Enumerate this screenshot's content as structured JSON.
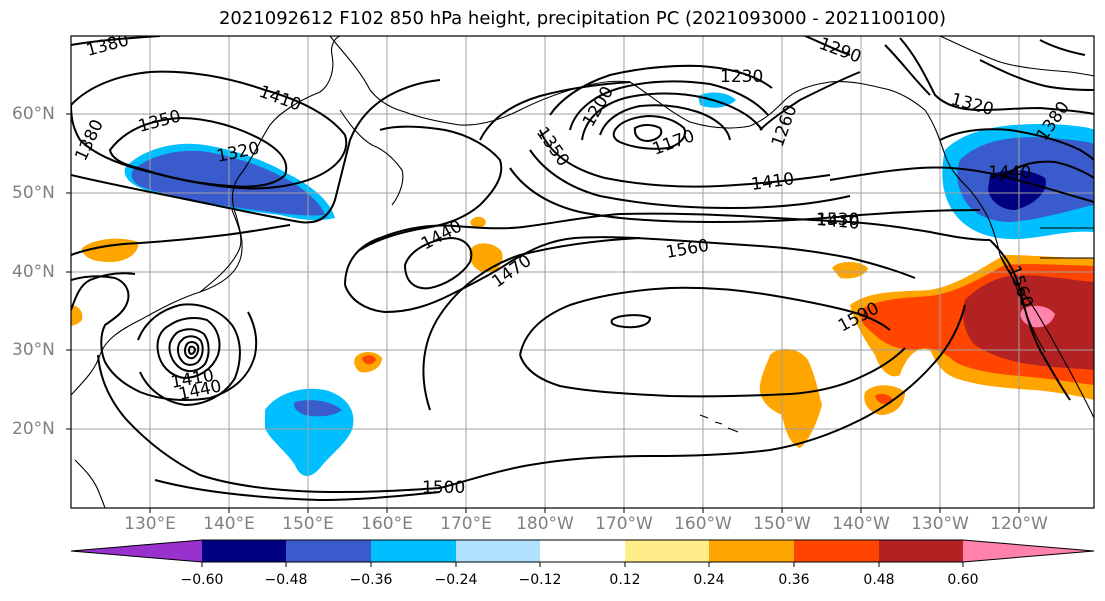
{
  "title": "2021092612 F102 850 hPa height, precipitation PC (2021093000 - 2021100100)",
  "lat_labels": [
    "60°N",
    "50°N",
    "40°N",
    "30°N",
    "20°N"
  ],
  "lon_labels": [
    "130°E",
    "140°E",
    "150°E",
    "160°E",
    "170°E",
    "180°W",
    "170°W",
    "160°W",
    "150°W",
    "140°W",
    "130°W",
    "120°W"
  ],
  "contour_labels": [
    "1380",
    "1350",
    "1410",
    "1380",
    "1320",
    "1230",
    "1290",
    "1200",
    "1170",
    "1260",
    "1350",
    "1320",
    "1380",
    "1410",
    "1440",
    "1410",
    "1530",
    "1440",
    "1470",
    "1560",
    "1560",
    "1590",
    "1410",
    "1440",
    "1500"
  ],
  "colorbar": {
    "ticks": [
      "−0.60",
      "−0.48",
      "−0.36",
      "−0.24",
      "−0.12",
      "0.12",
      "0.24",
      "0.36",
      "0.48",
      "0.60"
    ],
    "colors": [
      "#9932cc",
      "#000080",
      "#3a5bcc",
      "#00bfff",
      "#b0e2ff",
      "#ffffff",
      "#ffec8b",
      "#ffa500",
      "#ff4500",
      "#b22222",
      "#ff82ab"
    ]
  }
}
